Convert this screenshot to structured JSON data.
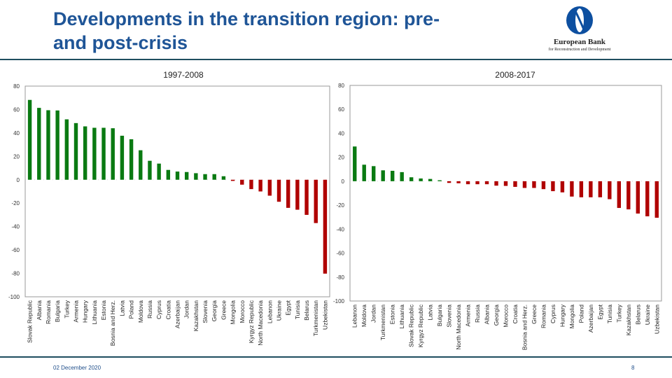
{
  "header": {
    "title": "Developments in the transition region: pre-and post-crisis"
  },
  "logo": {
    "line1": "European Bank",
    "line2": "for Reconstruction and Development"
  },
  "footer": {
    "date": "02 December 2020",
    "page": "8"
  },
  "colors": {
    "positive": "#0a7a12",
    "negative": "#b00000",
    "title": "#1f5597",
    "rule": "#1f4e5f"
  },
  "chart_data": [
    {
      "type": "bar",
      "title": "1997-2008",
      "ylim": [
        -100,
        80
      ],
      "yticks": [
        80,
        60,
        40,
        20,
        0,
        -20,
        -40,
        -60,
        -80,
        -100
      ],
      "categories": [
        "Slovak Republic",
        "Albania",
        "Romania",
        "Bulgaria",
        "Turkey",
        "Armenia",
        "Hungary",
        "Lithuania",
        "Estonia",
        "Bosnia and Herz.",
        "Latvia",
        "Poland",
        "Moldova",
        "Russia",
        "Cyprus",
        "Croatia",
        "Azerbaijan",
        "Jordan",
        "Kazakhstan",
        "Slovenia",
        "Georgia",
        "Greece",
        "Mongolia",
        "Morocco",
        "Kyrgyz Republic",
        "North Macedonia",
        "Lebanon",
        "Ukraine",
        "Egypt",
        "Tunisia",
        "Belarus",
        "Turkmenistan",
        "Uzbekistan"
      ],
      "values": [
        68.2,
        61.4,
        59.4,
        59.2,
        51.6,
        48.4,
        45.6,
        44.4,
        44.4,
        44,
        37.6,
        34.6,
        25.2,
        16.2,
        13.8,
        8.4,
        7,
        6.6,
        5.6,
        4.8,
        4.8,
        3,
        -1,
        -4.2,
        -8,
        -10,
        -13.6,
        -18.8,
        -24,
        -25.6,
        -30,
        -37,
        -80.2
      ]
    },
    {
      "type": "bar",
      "title": "2008-2017",
      "ylim": [
        -100,
        80
      ],
      "yticks": [
        80,
        60,
        40,
        20,
        0,
        -20,
        -40,
        -60,
        -80,
        -100
      ],
      "categories": [
        "Lebanon",
        "Moldova",
        "Jordan",
        "Turkmenistan",
        "Estonia",
        "Lithuania",
        "Slovak Republic",
        "Kyrgyz Republic",
        "Latvia",
        "Bulgaria",
        "Slovenia",
        "North Macedonia",
        "Armenia",
        "Russia",
        "Albania",
        "Georgia",
        "Morocco",
        "Croatia",
        "Bosnia and Herz.",
        "Greece",
        "Romania",
        "Cyprus",
        "Hungary",
        "Mongolia",
        "Poland",
        "Azerbaijan",
        "Egypt",
        "Tunisia",
        "Turkey",
        "Kazakhstan",
        "Belarus",
        "Ukraine",
        "Uzbekistan"
      ],
      "values": [
        29,
        13.8,
        12.6,
        9.1,
        8.7,
        7.6,
        3.3,
        2.3,
        1.9,
        0.8,
        -1.4,
        -1.7,
        -2.5,
        -2.5,
        -2.5,
        -3.7,
        -3.9,
        -4.7,
        -5.6,
        -5.6,
        -6.6,
        -8.3,
        -9.3,
        -12.8,
        -13.4,
        -13.4,
        -13.4,
        -15,
        -22.3,
        -23.5,
        -27,
        -29.3,
        -30.5
      ]
    }
  ]
}
